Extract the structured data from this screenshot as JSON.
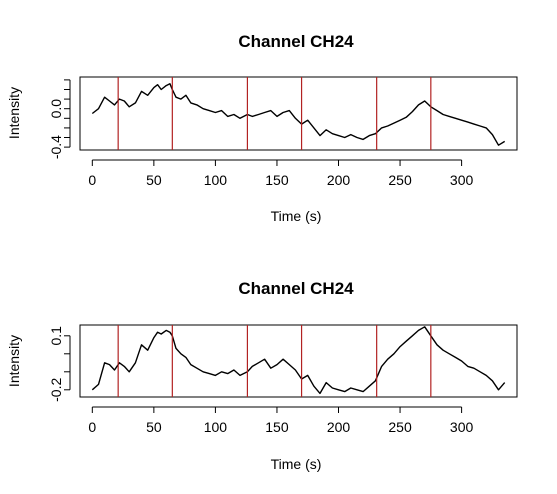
{
  "chart_data": [
    {
      "type": "line",
      "title": "Channel CH24",
      "xlabel": "Time (s)",
      "ylabel": "Intensity",
      "xlim": [
        -10,
        345
      ],
      "ylim": [
        -0.43,
        0.33
      ],
      "xticks": [
        0,
        50,
        100,
        150,
        200,
        250,
        300
      ],
      "xtick_labels": [
        "0",
        "50",
        "100",
        "150",
        "200",
        "250",
        "300"
      ],
      "yticks": [
        -0.4,
        -0.3,
        -0.2,
        -0.1,
        0.0,
        0.1,
        0.2,
        0.3
      ],
      "yticks_labeled": [
        -0.4,
        0.0
      ],
      "ytick_labels": [
        "-0.4",
        "0.0"
      ],
      "line_color": "#000000",
      "marker_color": "#B22222",
      "vlines": [
        21,
        65,
        126,
        170,
        231,
        275
      ],
      "series": [
        {
          "x": [
            0,
            5,
            10,
            14,
            18,
            22,
            26,
            30,
            35,
            40,
            45,
            50,
            53,
            56,
            60,
            63,
            65,
            68,
            72,
            76,
            80,
            85,
            90,
            95,
            100,
            105,
            110,
            115,
            120,
            126,
            130,
            135,
            140,
            145,
            150,
            155,
            160,
            165,
            170,
            175,
            180,
            185,
            190,
            195,
            200,
            205,
            210,
            215,
            220,
            225,
            230,
            235,
            240,
            245,
            250,
            255,
            260,
            265,
            270,
            275,
            280,
            285,
            290,
            295,
            300,
            305,
            310,
            315,
            320,
            325,
            330,
            335
          ],
          "y": [
            -0.05,
            0.0,
            0.12,
            0.08,
            0.04,
            0.1,
            0.08,
            0.02,
            0.06,
            0.18,
            0.14,
            0.22,
            0.25,
            0.2,
            0.24,
            0.26,
            0.2,
            0.12,
            0.1,
            0.14,
            0.06,
            0.04,
            0.0,
            -0.02,
            -0.04,
            -0.02,
            -0.08,
            -0.06,
            -0.1,
            -0.06,
            -0.08,
            -0.06,
            -0.04,
            -0.02,
            -0.08,
            -0.04,
            -0.02,
            -0.1,
            -0.16,
            -0.12,
            -0.2,
            -0.28,
            -0.22,
            -0.26,
            -0.28,
            -0.3,
            -0.27,
            -0.3,
            -0.32,
            -0.28,
            -0.26,
            -0.2,
            -0.18,
            -0.15,
            -0.12,
            -0.09,
            -0.03,
            0.04,
            0.08,
            0.02,
            -0.02,
            -0.06,
            -0.08,
            -0.1,
            -0.12,
            -0.14,
            -0.16,
            -0.18,
            -0.2,
            -0.27,
            -0.38,
            -0.34
          ]
        }
      ]
    },
    {
      "type": "line",
      "title": "Channel CH24",
      "xlabel": "Time (s)",
      "ylabel": "Intensity",
      "xlim": [
        -10,
        345
      ],
      "ylim": [
        -0.24,
        0.16
      ],
      "xticks": [
        0,
        50,
        100,
        150,
        200,
        250,
        300
      ],
      "xtick_labels": [
        "0",
        "50",
        "100",
        "150",
        "200",
        "250",
        "300"
      ],
      "yticks": [
        -0.2,
        -0.1,
        0.0,
        0.1
      ],
      "yticks_labeled": [
        -0.2,
        0.1
      ],
      "ytick_labels": [
        "-0.2",
        "0.1"
      ],
      "line_color": "#000000",
      "marker_color": "#B22222",
      "vlines": [
        21,
        65,
        126,
        170,
        231,
        275
      ],
      "series": [
        {
          "x": [
            0,
            5,
            10,
            14,
            18,
            22,
            26,
            30,
            35,
            40,
            45,
            50,
            53,
            56,
            60,
            63,
            65,
            68,
            72,
            76,
            80,
            85,
            90,
            95,
            100,
            105,
            110,
            115,
            120,
            126,
            130,
            135,
            140,
            145,
            150,
            155,
            160,
            165,
            170,
            175,
            180,
            185,
            190,
            195,
            200,
            205,
            210,
            215,
            220,
            225,
            230,
            235,
            240,
            245,
            250,
            255,
            260,
            265,
            270,
            275,
            280,
            285,
            290,
            295,
            300,
            305,
            310,
            315,
            320,
            325,
            330,
            335
          ],
          "y": [
            -0.2,
            -0.17,
            -0.05,
            -0.06,
            -0.09,
            -0.05,
            -0.07,
            -0.1,
            -0.05,
            0.05,
            0.02,
            0.09,
            0.12,
            0.11,
            0.13,
            0.12,
            0.1,
            0.03,
            0.0,
            -0.02,
            -0.06,
            -0.08,
            -0.1,
            -0.11,
            -0.12,
            -0.1,
            -0.11,
            -0.09,
            -0.12,
            -0.1,
            -0.07,
            -0.05,
            -0.03,
            -0.08,
            -0.06,
            -0.03,
            -0.06,
            -0.09,
            -0.14,
            -0.12,
            -0.18,
            -0.22,
            -0.16,
            -0.19,
            -0.2,
            -0.21,
            -0.19,
            -0.2,
            -0.21,
            -0.18,
            -0.15,
            -0.07,
            -0.03,
            0.0,
            0.04,
            0.07,
            0.1,
            0.13,
            0.15,
            0.1,
            0.05,
            0.02,
            0.0,
            -0.02,
            -0.04,
            -0.07,
            -0.08,
            -0.1,
            -0.12,
            -0.15,
            -0.2,
            -0.16
          ]
        }
      ]
    }
  ]
}
